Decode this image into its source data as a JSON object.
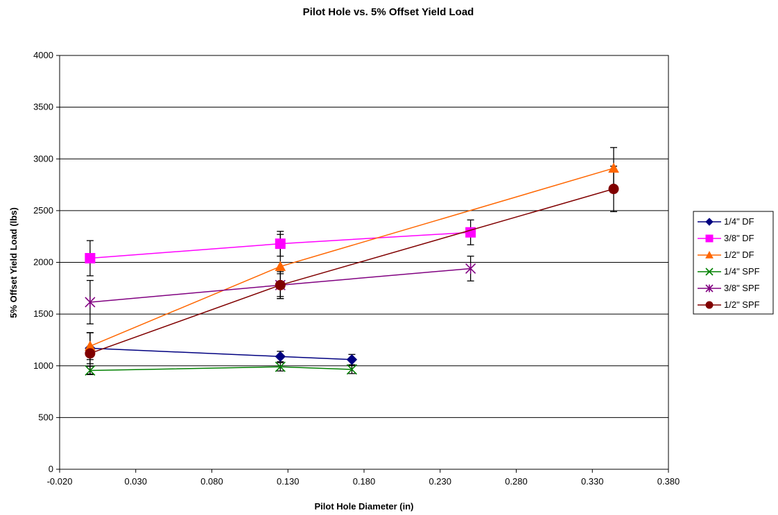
{
  "chart_data": {
    "type": "scatter",
    "title": "Pilot Hole vs. 5% Offset Yield Load",
    "xlabel": "Pilot Hole Diameter (in)",
    "ylabel": "5% Offset Yield Load (lbs)",
    "xlim": [
      -0.02,
      0.38
    ],
    "ylim": [
      0,
      4000
    ],
    "x_ticks": [
      -0.02,
      0.03,
      0.08,
      0.13,
      0.18,
      0.23,
      0.28,
      0.33,
      0.38
    ],
    "x_tick_labels": [
      "-0.020",
      "0.030",
      "0.080",
      "0.130",
      "0.180",
      "0.230",
      "0.280",
      "0.330",
      "0.380"
    ],
    "y_ticks": [
      0,
      500,
      1000,
      1500,
      2000,
      2500,
      3000,
      3500,
      4000
    ],
    "y_tick_labels": [
      "0",
      "500",
      "1000",
      "1500",
      "2000",
      "2500",
      "3000",
      "3500",
      "4000"
    ],
    "grid": "horizontal major gridlines",
    "legend_position": "right",
    "lines_connected": true,
    "error_bars": true,
    "series": [
      {
        "name": "1/4\" DF",
        "color": "#000080",
        "marker": "diamond",
        "x": [
          0,
          0.125,
          0.172
        ],
        "y": [
          1170,
          1090,
          1060
        ],
        "err": [
          150,
          50,
          50
        ]
      },
      {
        "name": "3/8\" DF",
        "color": "#FF00FF",
        "marker": "square",
        "x": [
          0,
          0.125,
          0.25
        ],
        "y": [
          2040,
          2180,
          2290
        ],
        "err": [
          170,
          120,
          120
        ]
      },
      {
        "name": "1/2\" DF",
        "color": "#FF6600",
        "marker": "triangle",
        "x": [
          0,
          0.125,
          0.344
        ],
        "y": [
          1190,
          1960,
          2910
        ],
        "err": [
          130,
          310,
          200
        ]
      },
      {
        "name": "1/4\" SPF",
        "color": "#008000",
        "marker": "x",
        "x": [
          0,
          0.125,
          0.172
        ],
        "y": [
          955,
          990,
          965
        ],
        "err": [
          40,
          40,
          40
        ]
      },
      {
        "name": "3/8\" SPF",
        "color": "#800080",
        "marker": "star",
        "x": [
          0,
          0.125,
          0.25
        ],
        "y": [
          1615,
          1780,
          1940
        ],
        "err": [
          210,
          110,
          120
        ]
      },
      {
        "name": "1/2\" SPF",
        "color": "#800000",
        "marker": "circle",
        "x": [
          0,
          0.125,
          0.344
        ],
        "y": [
          1120,
          1780,
          2710
        ],
        "err": [
          200,
          130,
          220
        ]
      }
    ]
  }
}
